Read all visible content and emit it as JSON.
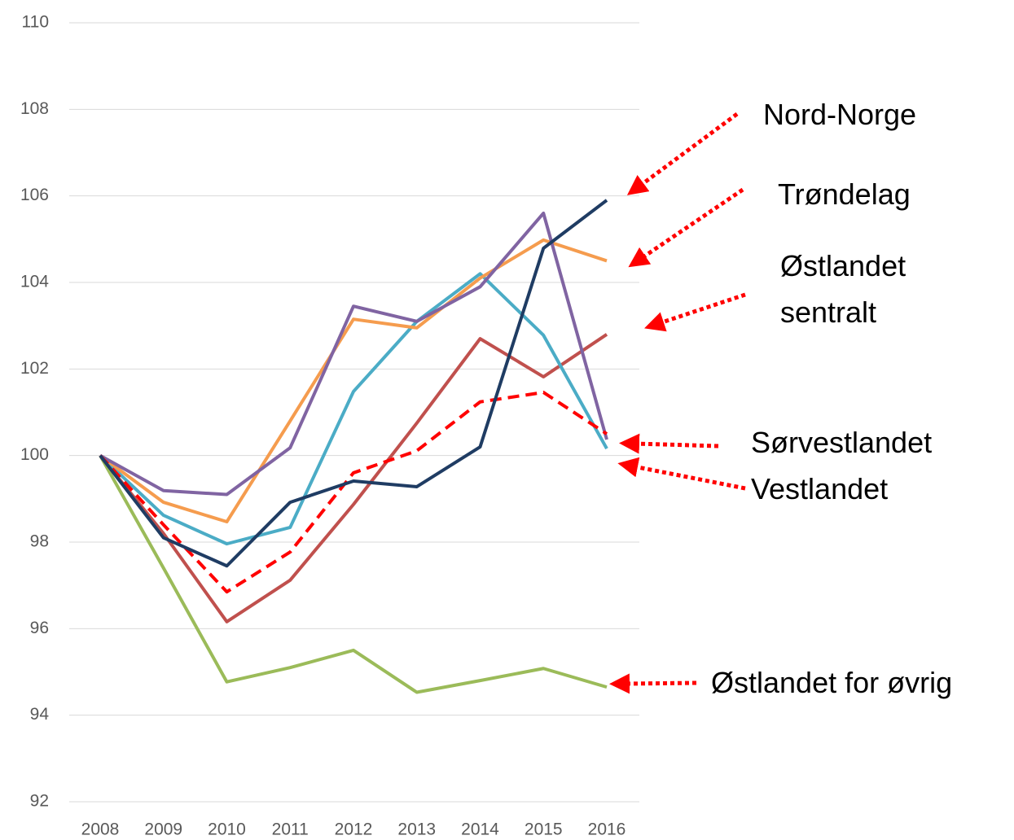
{
  "chart_data": {
    "type": "line",
    "x": [
      "2008",
      "2009",
      "2010",
      "2011",
      "2012",
      "2013",
      "2014",
      "2015",
      "2016"
    ],
    "ylim": [
      92,
      110
    ],
    "yticks": [
      92,
      94,
      96,
      98,
      100,
      102,
      104,
      106,
      108,
      110
    ],
    "grid": true,
    "series": [
      {
        "name": "Nord-Norge",
        "color": "#1f3c63",
        "values": [
          100,
          98.1,
          97.45,
          98.92,
          99.41,
          99.28,
          100.2,
          104.79,
          105.9
        ]
      },
      {
        "name": "Trøndelag",
        "color": "#f59c4e",
        "values": [
          100,
          98.92,
          98.47,
          100.8,
          103.15,
          102.95,
          104.1,
          104.98,
          104.5
        ]
      },
      {
        "name": "Østlandet sentralt",
        "color": "#c0504d",
        "values": [
          100,
          98.2,
          96.16,
          97.12,
          98.87,
          100.75,
          102.7,
          101.82,
          102.8
        ]
      },
      {
        "name": "Sørvestlandet",
        "color": "#8064a2",
        "values": [
          100,
          99.19,
          99.1,
          100.18,
          103.45,
          103.1,
          103.9,
          105.6,
          100.37
        ]
      },
      {
        "name": "Vestlandet",
        "color": "#4bacc6",
        "values": [
          100,
          98.62,
          97.96,
          98.34,
          101.48,
          103.1,
          104.2,
          102.78,
          100.16
        ]
      },
      {
        "name": "Østlandet for øvrig",
        "color": "#9bbb59",
        "values": [
          100,
          97.4,
          94.77,
          95.1,
          95.5,
          94.53,
          94.8,
          95.08,
          94.65
        ]
      },
      {
        "color": "#ff0000",
        "dashed": true,
        "values": [
          100,
          98.4,
          96.85,
          97.77,
          99.6,
          100.11,
          101.24,
          101.46,
          100.5
        ]
      }
    ]
  }
}
